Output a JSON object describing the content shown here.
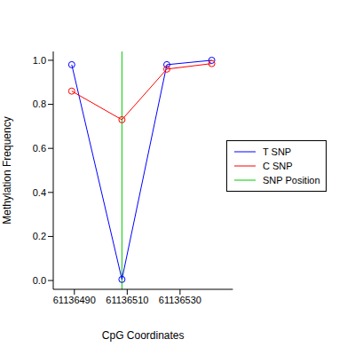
{
  "chart_data": {
    "type": "line",
    "x_label": "CpG Coordinates",
    "y_label": "Methylation Frequency",
    "x": [
      61136489,
      61136508,
      61136525,
      61136542
    ],
    "series": [
      {
        "name": "T SNP",
        "color": "#0000ff",
        "marker": "circle",
        "values": [
          0.98,
          0.005,
          0.98,
          1.0
        ]
      },
      {
        "name": "C SNP",
        "color": "#ff0000",
        "marker": "circle",
        "values": [
          0.86,
          0.73,
          0.96,
          0.985
        ]
      }
    ],
    "snp_position": {
      "name": "SNP Position",
      "color": "#00cc00",
      "value": 61136508
    },
    "xlim": [
      61136482,
      61136550
    ],
    "xticks": [
      61136490,
      61136510,
      61136530
    ],
    "ylim": [
      -0.04,
      1.04
    ],
    "yticks": [
      {
        "value": 0,
        "label": "0.0"
      },
      0.2,
      0.4,
      0.6,
      0.8,
      {
        "value": 1,
        "label": "1.0"
      }
    ],
    "legend": "right",
    "grid": false
  }
}
